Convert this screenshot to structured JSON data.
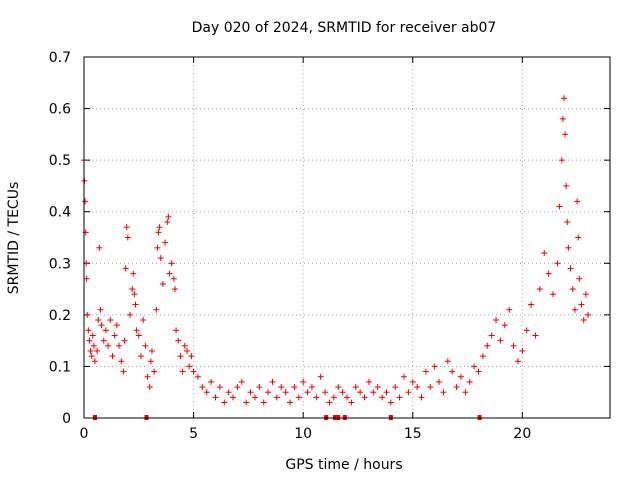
{
  "chart_data": {
    "type": "scatter",
    "title": "Day 020 of 2024, SRMTID for receiver ab07",
    "xlabel": "GPS time / hours",
    "ylabel": "SRMTID / TECUs",
    "xlim": [
      0,
      24
    ],
    "ylim": [
      0,
      0.7
    ],
    "xticks": [
      0,
      5,
      10,
      15,
      20
    ],
    "yticks": [
      0,
      0.1,
      0.2,
      0.3,
      0.4,
      0.5,
      0.6,
      0.7
    ],
    "xtick_labels": [
      "0",
      "5",
      "10",
      "15",
      "20"
    ],
    "ytick_labels": [
      "0",
      "0.1",
      "0.2",
      "0.3",
      "0.4",
      "0.5",
      "0.6",
      "0.7"
    ],
    "grid": true,
    "marker": "plus",
    "color": "#ee0000",
    "series": [
      {
        "name": "SRMTID",
        "points": [
          [
            0.0,
            0.5
          ],
          [
            0.02,
            0.46
          ],
          [
            0.05,
            0.42
          ],
          [
            0.08,
            0.36
          ],
          [
            0.1,
            0.3
          ],
          [
            0.12,
            0.27
          ],
          [
            0.15,
            0.2
          ],
          [
            0.2,
            0.17
          ],
          [
            0.25,
            0.15
          ],
          [
            0.3,
            0.13
          ],
          [
            0.35,
            0.12
          ],
          [
            0.4,
            0.16
          ],
          [
            0.45,
            0.14
          ],
          [
            0.5,
            0.11
          ],
          [
            0.6,
            0.13
          ],
          [
            0.65,
            0.19
          ],
          [
            0.7,
            0.33
          ],
          [
            0.75,
            0.21
          ],
          [
            0.8,
            0.18
          ],
          [
            0.9,
            0.15
          ],
          [
            1.0,
            0.17
          ],
          [
            1.1,
            0.14
          ],
          [
            1.2,
            0.19
          ],
          [
            1.3,
            0.12
          ],
          [
            1.4,
            0.16
          ],
          [
            1.5,
            0.18
          ],
          [
            1.6,
            0.14
          ],
          [
            1.7,
            0.11
          ],
          [
            1.8,
            0.09
          ],
          [
            1.85,
            0.15
          ],
          [
            1.9,
            0.29
          ],
          [
            1.95,
            0.37
          ],
          [
            2.0,
            0.35
          ],
          [
            2.1,
            0.2
          ],
          [
            2.2,
            0.25
          ],
          [
            2.25,
            0.28
          ],
          [
            2.3,
            0.24
          ],
          [
            2.35,
            0.22
          ],
          [
            2.4,
            0.17
          ],
          [
            2.5,
            0.16
          ],
          [
            2.6,
            0.12
          ],
          [
            2.7,
            0.19
          ],
          [
            2.8,
            0.14
          ],
          [
            2.9,
            0.08
          ],
          [
            3.0,
            0.06
          ],
          [
            3.05,
            0.11
          ],
          [
            3.1,
            0.13
          ],
          [
            3.2,
            0.09
          ],
          [
            3.3,
            0.21
          ],
          [
            3.35,
            0.33
          ],
          [
            3.4,
            0.36
          ],
          [
            3.45,
            0.37
          ],
          [
            3.5,
            0.31
          ],
          [
            3.6,
            0.26
          ],
          [
            3.7,
            0.34
          ],
          [
            3.8,
            0.38
          ],
          [
            3.85,
            0.39
          ],
          [
            3.9,
            0.28
          ],
          [
            4.0,
            0.3
          ],
          [
            4.1,
            0.27
          ],
          [
            4.15,
            0.25
          ],
          [
            4.2,
            0.17
          ],
          [
            4.3,
            0.15
          ],
          [
            4.4,
            0.12
          ],
          [
            4.5,
            0.09
          ],
          [
            4.6,
            0.14
          ],
          [
            4.7,
            0.13
          ],
          [
            4.8,
            0.1
          ],
          [
            4.9,
            0.12
          ],
          [
            5.0,
            0.09
          ],
          [
            5.2,
            0.08
          ],
          [
            5.4,
            0.06
          ],
          [
            5.6,
            0.05
          ],
          [
            5.8,
            0.07
          ],
          [
            6.0,
            0.04
          ],
          [
            6.2,
            0.06
          ],
          [
            6.4,
            0.03
          ],
          [
            6.6,
            0.05
          ],
          [
            6.8,
            0.04
          ],
          [
            7.0,
            0.06
          ],
          [
            7.2,
            0.07
          ],
          [
            7.4,
            0.03
          ],
          [
            7.6,
            0.05
          ],
          [
            7.8,
            0.04
          ],
          [
            8.0,
            0.06
          ],
          [
            8.2,
            0.03
          ],
          [
            8.4,
            0.05
          ],
          [
            8.6,
            0.07
          ],
          [
            8.8,
            0.04
          ],
          [
            9.0,
            0.06
          ],
          [
            9.2,
            0.05
          ],
          [
            9.4,
            0.03
          ],
          [
            9.6,
            0.06
          ],
          [
            9.8,
            0.04
          ],
          [
            10.0,
            0.07
          ],
          [
            10.2,
            0.05
          ],
          [
            10.4,
            0.06
          ],
          [
            10.6,
            0.04
          ],
          [
            10.8,
            0.08
          ],
          [
            11.0,
            0.05
          ],
          [
            11.2,
            0.03
          ],
          [
            11.4,
            0.04
          ],
          [
            11.6,
            0.06
          ],
          [
            11.8,
            0.05
          ],
          [
            12.0,
            0.04
          ],
          [
            12.2,
            0.03
          ],
          [
            12.4,
            0.06
          ],
          [
            12.6,
            0.05
          ],
          [
            12.8,
            0.04
          ],
          [
            13.0,
            0.07
          ],
          [
            13.2,
            0.05
          ],
          [
            13.4,
            0.06
          ],
          [
            13.6,
            0.04
          ],
          [
            13.8,
            0.05
          ],
          [
            14.0,
            0.03
          ],
          [
            14.2,
            0.06
          ],
          [
            14.4,
            0.04
          ],
          [
            14.6,
            0.08
          ],
          [
            14.8,
            0.05
          ],
          [
            15.0,
            0.07
          ],
          [
            15.2,
            0.06
          ],
          [
            15.4,
            0.04
          ],
          [
            15.6,
            0.09
          ],
          [
            15.8,
            0.06
          ],
          [
            16.0,
            0.1
          ],
          [
            16.2,
            0.07
          ],
          [
            16.4,
            0.05
          ],
          [
            16.6,
            0.11
          ],
          [
            16.8,
            0.09
          ],
          [
            17.0,
            0.06
          ],
          [
            17.2,
            0.08
          ],
          [
            17.4,
            0.05
          ],
          [
            17.6,
            0.07
          ],
          [
            17.8,
            0.1
          ],
          [
            18.0,
            0.09
          ],
          [
            18.2,
            0.12
          ],
          [
            18.4,
            0.14
          ],
          [
            18.6,
            0.16
          ],
          [
            18.8,
            0.19
          ],
          [
            19.0,
            0.15
          ],
          [
            19.2,
            0.18
          ],
          [
            19.4,
            0.21
          ],
          [
            19.6,
            0.14
          ],
          [
            19.8,
            0.11
          ],
          [
            20.0,
            0.13
          ],
          [
            20.2,
            0.17
          ],
          [
            20.4,
            0.22
          ],
          [
            20.6,
            0.16
          ],
          [
            20.8,
            0.25
          ],
          [
            21.0,
            0.32
          ],
          [
            21.2,
            0.28
          ],
          [
            21.4,
            0.24
          ],
          [
            21.6,
            0.3
          ],
          [
            21.7,
            0.41
          ],
          [
            21.8,
            0.5
          ],
          [
            21.85,
            0.58
          ],
          [
            21.9,
            0.62
          ],
          [
            21.95,
            0.55
          ],
          [
            22.0,
            0.45
          ],
          [
            22.05,
            0.38
          ],
          [
            22.1,
            0.33
          ],
          [
            22.2,
            0.29
          ],
          [
            22.3,
            0.25
          ],
          [
            22.4,
            0.21
          ],
          [
            22.5,
            0.42
          ],
          [
            22.55,
            0.35
          ],
          [
            22.6,
            0.27
          ],
          [
            22.7,
            0.22
          ],
          [
            22.8,
            0.19
          ],
          [
            22.9,
            0.24
          ],
          [
            23.0,
            0.2
          ]
        ]
      }
    ],
    "gap_markers": [
      0.5,
      2.85,
      11.05,
      11.45,
      11.6,
      11.9,
      14.0,
      18.05
    ]
  }
}
